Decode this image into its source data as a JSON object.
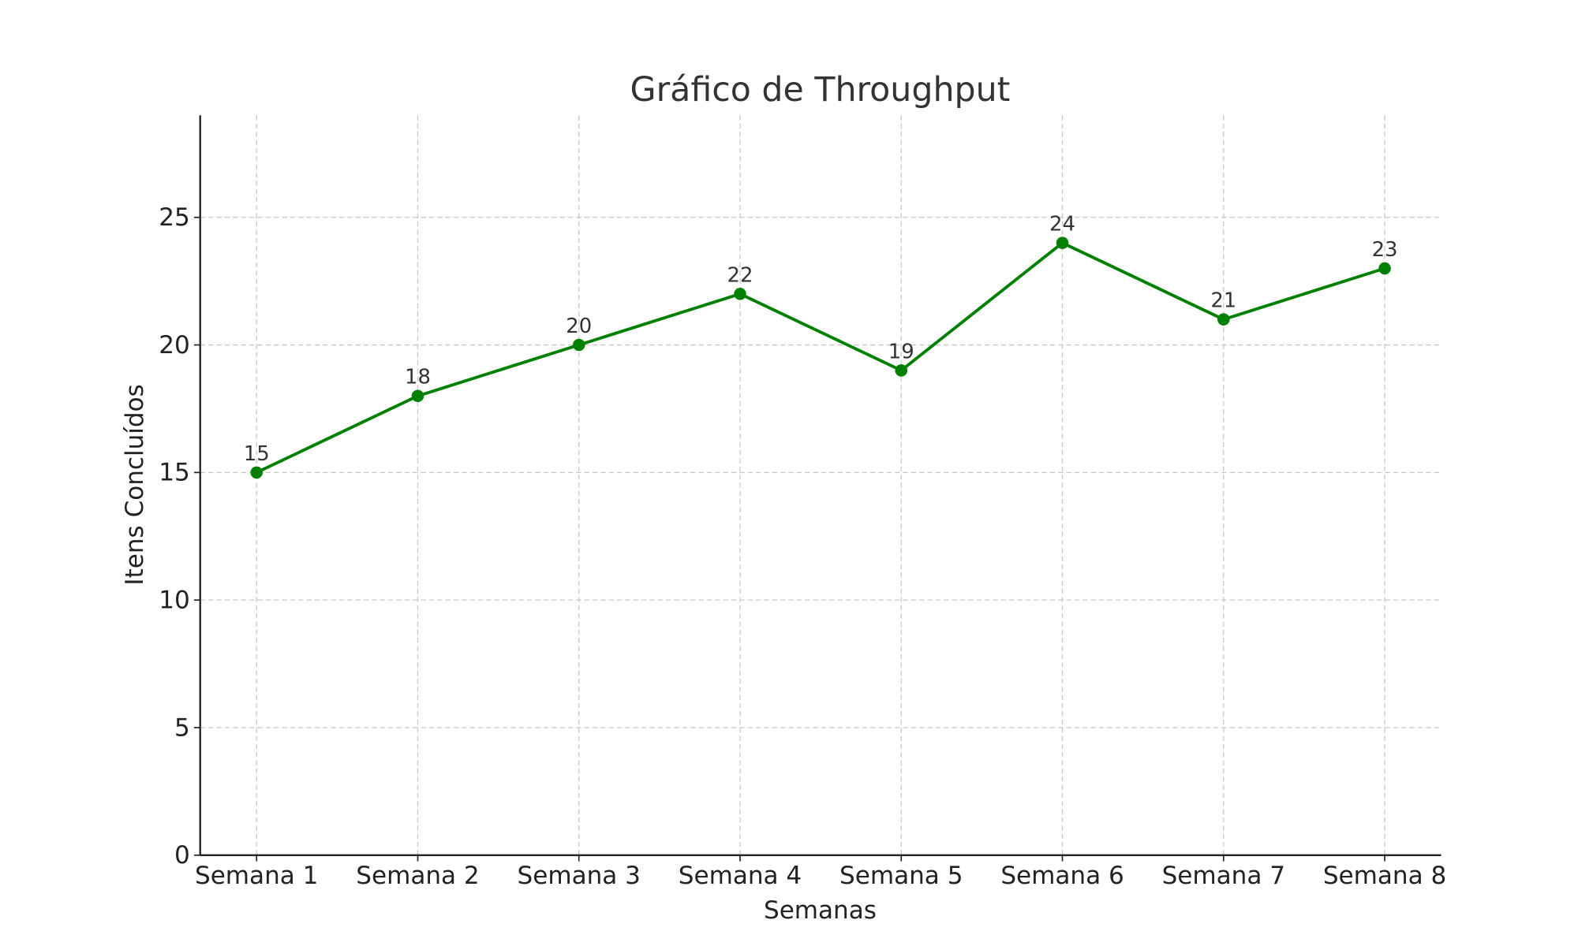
{
  "chart_data": {
    "type": "line",
    "title": "Gráfico de Throughput",
    "xlabel": "Semanas",
    "ylabel": "Itens Concluídos",
    "categories": [
      "Semana 1",
      "Semana 2",
      "Semana 3",
      "Semana 4",
      "Semana 5",
      "Semana 6",
      "Semana 7",
      "Semana 8"
    ],
    "series": [
      {
        "name": "Throughput",
        "values": [
          15,
          18,
          20,
          22,
          19,
          24,
          21,
          23
        ],
        "color": "#008000"
      }
    ],
    "ylim": [
      0,
      29
    ],
    "yticks": [
      0,
      5,
      10,
      15,
      20,
      25
    ],
    "grid": true,
    "data_labels": true
  }
}
